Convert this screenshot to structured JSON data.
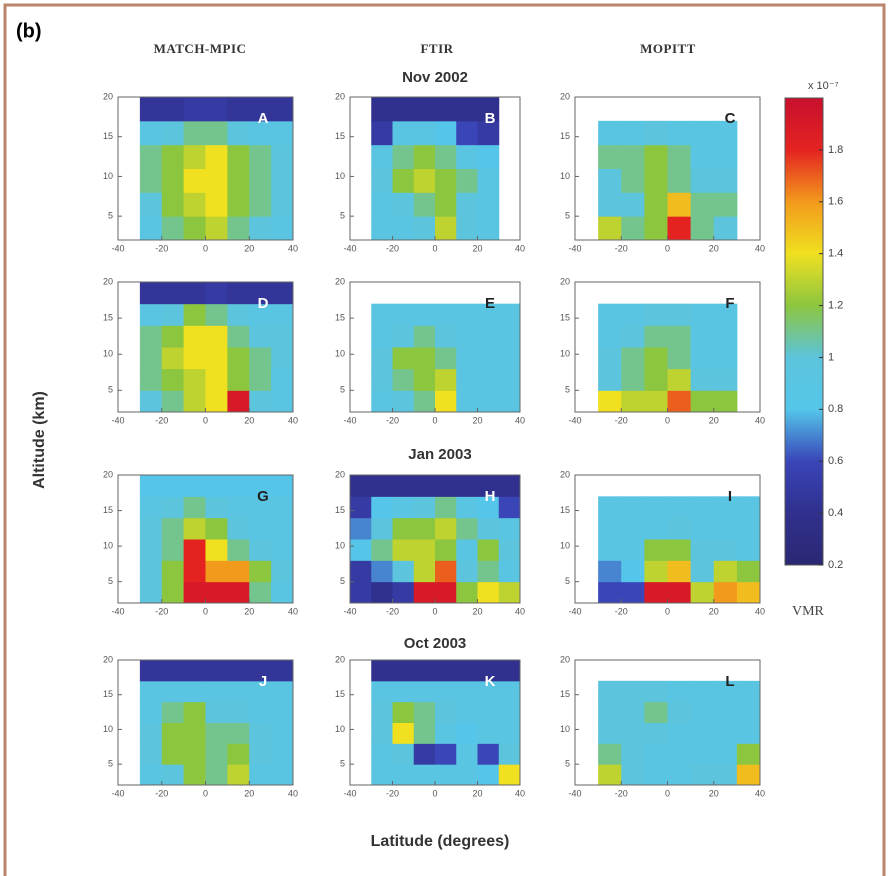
{
  "figure_label": "(b)",
  "column_titles": [
    "MATCH-MPIC",
    "FTIR",
    "MOPITT"
  ],
  "row_titles": [
    "Nov 2002",
    "Jan 2003",
    "Oct 2003"
  ],
  "y_label": "Altitude (km)",
  "x_label": "Latitude (degrees)",
  "colorbar": {
    "clim": [
      0.2,
      2.0
    ],
    "ticks": [
      0.2,
      0.4,
      0.6,
      0.8,
      1,
      1.2,
      1.4,
      1.6,
      1.8
    ],
    "scale_label": "x 10⁻⁷",
    "label": "VMR",
    "colors": [
      "#2a2872",
      "#30308e",
      "#3a45b8",
      "#55c6ea",
      "#5cc4dc",
      "#8cc63f",
      "#f0e020",
      "#f29a1c",
      "#e42320",
      "#c8102e"
    ]
  },
  "chart_data": [
    {
      "type": "heatmap",
      "label": "A",
      "xlim": [
        -40,
        40
      ],
      "ylim": [
        2,
        20
      ],
      "xticks": [
        -40,
        -20,
        0,
        20,
        40
      ],
      "yticks": [
        5,
        10,
        15,
        20
      ],
      "xbins": [
        -40,
        -30,
        -20,
        -10,
        0,
        10,
        20,
        30,
        40
      ],
      "ybins": [
        2,
        5,
        8,
        11,
        14,
        17,
        20
      ],
      "z": [
        [
          null,
          0.9,
          1.1,
          1.2,
          1.3,
          1.1,
          1.0,
          0.9
        ],
        [
          null,
          1.0,
          1.2,
          1.3,
          1.4,
          1.2,
          1.1,
          1.0
        ],
        [
          null,
          1.1,
          1.2,
          1.4,
          1.4,
          1.2,
          1.1,
          1.0
        ],
        [
          null,
          1.1,
          1.2,
          1.3,
          1.4,
          1.2,
          1.1,
          1.0
        ],
        [
          null,
          0.9,
          1.0,
          1.1,
          1.1,
          1.0,
          0.9,
          0.9
        ],
        [
          null,
          0.45,
          0.45,
          0.5,
          0.5,
          0.45,
          0.45,
          0.45
        ]
      ]
    },
    {
      "type": "heatmap",
      "label": "B",
      "xlim": [
        -40,
        40
      ],
      "ylim": [
        2,
        20
      ],
      "xticks": [
        -40,
        -20,
        0,
        20,
        40
      ],
      "yticks": [
        5,
        10,
        15,
        20
      ],
      "xbins": [
        -40,
        -30,
        -20,
        -10,
        0,
        10,
        20,
        30,
        40
      ],
      "ybins": [
        2,
        5,
        8,
        11,
        14,
        17,
        20
      ],
      "z": [
        [
          null,
          0.9,
          0.9,
          1.0,
          1.3,
          1.0,
          0.9,
          null
        ],
        [
          null,
          0.9,
          1.0,
          1.1,
          1.2,
          1.0,
          0.9,
          null
        ],
        [
          null,
          1.0,
          1.2,
          1.3,
          1.2,
          1.1,
          0.9,
          null
        ],
        [
          null,
          0.9,
          1.1,
          1.2,
          1.1,
          0.9,
          0.8,
          null
        ],
        [
          null,
          0.5,
          0.9,
          0.9,
          0.8,
          0.6,
          0.5,
          null
        ],
        [
          null,
          0.4,
          0.4,
          0.4,
          0.4,
          0.4,
          0.4,
          null
        ]
      ]
    },
    {
      "type": "heatmap",
      "label": "C",
      "xlim": [
        -40,
        40
      ],
      "ylim": [
        2,
        20
      ],
      "xticks": [
        -40,
        -20,
        0,
        20,
        40
      ],
      "yticks": [
        5,
        10,
        15,
        20
      ],
      "xbins": [
        -40,
        -30,
        -20,
        -10,
        0,
        10,
        20,
        30,
        40
      ],
      "ybins": [
        2,
        5,
        8,
        11,
        14,
        17,
        20
      ],
      "z": [
        [
          null,
          1.3,
          1.1,
          1.2,
          1.8,
          1.1,
          1.0,
          null
        ],
        [
          null,
          1.0,
          1.0,
          1.2,
          1.5,
          1.1,
          1.1,
          null
        ],
        [
          null,
          1.0,
          1.1,
          1.2,
          1.1,
          1.0,
          1.0,
          null
        ],
        [
          null,
          1.1,
          1.1,
          1.2,
          1.1,
          0.9,
          0.9,
          null
        ],
        [
          null,
          0.9,
          0.9,
          1.0,
          0.9,
          0.9,
          0.9,
          null
        ],
        [
          null,
          null,
          null,
          null,
          null,
          null,
          null,
          null
        ]
      ]
    },
    {
      "type": "heatmap",
      "label": "D",
      "xlim": [
        -40,
        40
      ],
      "ylim": [
        2,
        20
      ],
      "xticks": [
        -40,
        -20,
        0,
        20,
        40
      ],
      "yticks": [
        5,
        10,
        15,
        20
      ],
      "xbins": [
        -40,
        -30,
        -20,
        -10,
        0,
        10,
        20,
        30,
        40
      ],
      "ybins": [
        2,
        5,
        8,
        11,
        14,
        17,
        20
      ],
      "z": [
        [
          null,
          1.0,
          1.1,
          1.3,
          1.4,
          1.9,
          1.0,
          0.9
        ],
        [
          null,
          1.1,
          1.2,
          1.3,
          1.4,
          1.2,
          1.1,
          0.9
        ],
        [
          null,
          1.1,
          1.3,
          1.4,
          1.4,
          1.2,
          1.1,
          1.0
        ],
        [
          null,
          1.1,
          1.2,
          1.4,
          1.4,
          1.1,
          1.0,
          1.0
        ],
        [
          null,
          0.9,
          1.0,
          1.2,
          1.1,
          1.0,
          0.9,
          0.9
        ],
        [
          null,
          0.45,
          0.45,
          0.45,
          0.5,
          0.45,
          0.45,
          0.45
        ]
      ]
    },
    {
      "type": "heatmap",
      "label": "E",
      "xlim": [
        -40,
        40
      ],
      "ylim": [
        2,
        20
      ],
      "xticks": [
        -40,
        -20,
        0,
        20,
        40
      ],
      "yticks": [
        5,
        10,
        15,
        20
      ],
      "xbins": [
        -40,
        -30,
        -20,
        -10,
        0,
        10,
        20,
        30,
        40
      ],
      "ybins": [
        2,
        5,
        8,
        11,
        14,
        17,
        20
      ],
      "z": [
        [
          null,
          0.9,
          1.0,
          1.1,
          1.4,
          0.9,
          0.9,
          0.9
        ],
        [
          null,
          1.0,
          1.1,
          1.2,
          1.3,
          0.9,
          0.9,
          0.9
        ],
        [
          null,
          1.0,
          1.2,
          1.2,
          1.1,
          0.9,
          0.9,
          0.9
        ],
        [
          null,
          0.9,
          1.0,
          1.1,
          1.0,
          0.9,
          0.9,
          0.9
        ],
        [
          null,
          0.9,
          0.9,
          0.9,
          0.9,
          0.9,
          0.9,
          0.9
        ],
        [
          null,
          null,
          null,
          null,
          null,
          null,
          null,
          null
        ]
      ]
    },
    {
      "type": "heatmap",
      "label": "F",
      "xlim": [
        -40,
        40
      ],
      "ylim": [
        2,
        20
      ],
      "xticks": [
        -40,
        -20,
        0,
        20,
        40
      ],
      "yticks": [
        5,
        10,
        15,
        20
      ],
      "xbins": [
        -40,
        -30,
        -20,
        -10,
        0,
        10,
        20,
        30,
        40
      ],
      "ybins": [
        2,
        5,
        8,
        11,
        14,
        17,
        20
      ],
      "z": [
        [
          null,
          1.4,
          1.3,
          1.3,
          1.7,
          1.2,
          1.2,
          null
        ],
        [
          null,
          1.0,
          1.1,
          1.2,
          1.3,
          1.0,
          1.0,
          null
        ],
        [
          null,
          1.0,
          1.1,
          1.2,
          1.1,
          0.9,
          0.9,
          null
        ],
        [
          null,
          0.9,
          1.0,
          1.1,
          1.1,
          0.9,
          0.9,
          null
        ],
        [
          null,
          0.9,
          0.9,
          1.0,
          1.0,
          0.9,
          0.9,
          null
        ],
        [
          null,
          null,
          null,
          null,
          null,
          null,
          null,
          null
        ]
      ]
    },
    {
      "type": "heatmap",
      "label": "G",
      "xlim": [
        -40,
        40
      ],
      "ylim": [
        2,
        20
      ],
      "xticks": [
        -40,
        -20,
        0,
        20,
        40
      ],
      "yticks": [
        5,
        10,
        15,
        20
      ],
      "xbins": [
        -40,
        -30,
        -20,
        -10,
        0,
        10,
        20,
        30,
        40
      ],
      "ybins": [
        2,
        5,
        8,
        11,
        14,
        17,
        20
      ],
      "z": [
        [
          null,
          1.0,
          1.2,
          1.9,
          1.9,
          1.9,
          1.1,
          0.9
        ],
        [
          null,
          1.0,
          1.2,
          1.8,
          1.6,
          1.6,
          1.2,
          1.0
        ],
        [
          null,
          1.0,
          1.1,
          1.8,
          1.4,
          1.1,
          1.0,
          0.9
        ],
        [
          null,
          1.0,
          1.1,
          1.3,
          1.2,
          1.0,
          0.9,
          0.9
        ],
        [
          null,
          0.9,
          1.0,
          1.1,
          1.0,
          0.9,
          0.9,
          0.9
        ],
        [
          null,
          0.8,
          0.8,
          0.8,
          0.8,
          0.8,
          0.8,
          0.8
        ]
      ]
    },
    {
      "type": "heatmap",
      "label": "H",
      "xlim": [
        -40,
        40
      ],
      "ylim": [
        2,
        20
      ],
      "xticks": [
        -40,
        -20,
        0,
        20,
        40
      ],
      "yticks": [
        5,
        10,
        15,
        20
      ],
      "xbins": [
        -40,
        -30,
        -20,
        -10,
        0,
        10,
        20,
        30,
        40
      ],
      "ybins": [
        2,
        5,
        8,
        11,
        14,
        17,
        20
      ],
      "z": [
        [
          0.5,
          0.4,
          0.5,
          1.9,
          1.9,
          1.2,
          1.4,
          1.3
        ],
        [
          0.5,
          0.7,
          1.0,
          1.3,
          1.7,
          1.0,
          1.1,
          0.9
        ],
        [
          0.8,
          1.1,
          1.3,
          1.3,
          1.2,
          0.9,
          1.2,
          1.0
        ],
        [
          0.7,
          1.0,
          1.2,
          1.2,
          1.3,
          1.1,
          1.0,
          0.9
        ],
        [
          0.5,
          0.8,
          0.9,
          1.0,
          1.1,
          0.9,
          0.8,
          0.6
        ],
        [
          0.4,
          0.4,
          0.4,
          0.4,
          0.4,
          0.4,
          0.4,
          0.4
        ]
      ]
    },
    {
      "type": "heatmap",
      "label": "I",
      "xlim": [
        -40,
        40
      ],
      "ylim": [
        2,
        20
      ],
      "xticks": [
        -40,
        -20,
        0,
        20,
        40
      ],
      "yticks": [
        5,
        10,
        15,
        20
      ],
      "xbins": [
        -40,
        -30,
        -20,
        -10,
        0,
        10,
        20,
        30,
        40
      ],
      "ybins": [
        2,
        5,
        8,
        11,
        14,
        17,
        20
      ],
      "z": [
        [
          null,
          0.6,
          0.6,
          1.9,
          1.9,
          1.3,
          1.6,
          1.5
        ],
        [
          null,
          0.7,
          0.8,
          1.3,
          1.5,
          1.0,
          1.3,
          1.2
        ],
        [
          null,
          0.9,
          0.9,
          1.2,
          1.2,
          1.0,
          1.0,
          0.9
        ],
        [
          null,
          0.9,
          0.9,
          0.9,
          1.0,
          0.9,
          0.9,
          0.9
        ],
        [
          null,
          0.9,
          0.9,
          0.9,
          0.9,
          0.9,
          0.9,
          0.9
        ],
        [
          null,
          null,
          null,
          null,
          null,
          null,
          null,
          null
        ]
      ]
    },
    {
      "type": "heatmap",
      "label": "J",
      "xlim": [
        -40,
        40
      ],
      "ylim": [
        2,
        20
      ],
      "xticks": [
        -40,
        -20,
        0,
        20,
        40
      ],
      "yticks": [
        5,
        10,
        15,
        20
      ],
      "xbins": [
        -40,
        -30,
        -20,
        -10,
        0,
        10,
        20,
        30,
        40
      ],
      "ybins": [
        2,
        5,
        8,
        11,
        14,
        17,
        20
      ],
      "z": [
        [
          null,
          0.9,
          1.0,
          1.2,
          1.1,
          1.3,
          0.9,
          0.9
        ],
        [
          null,
          1.0,
          1.2,
          1.2,
          1.1,
          1.2,
          1.0,
          0.9
        ],
        [
          null,
          1.0,
          1.2,
          1.2,
          1.1,
          1.1,
          1.0,
          0.9
        ],
        [
          null,
          0.9,
          1.1,
          1.2,
          1.0,
          1.0,
          0.9,
          0.9
        ],
        [
          null,
          0.9,
          0.9,
          0.9,
          0.9,
          0.9,
          0.9,
          0.9
        ],
        [
          null,
          0.45,
          0.45,
          0.45,
          0.45,
          0.45,
          0.45,
          0.45
        ]
      ]
    },
    {
      "type": "heatmap",
      "label": "K",
      "xlim": [
        -40,
        40
      ],
      "ylim": [
        2,
        20
      ],
      "xticks": [
        -40,
        -20,
        0,
        20,
        40
      ],
      "yticks": [
        5,
        10,
        15,
        20
      ],
      "xbins": [
        -40,
        -30,
        -20,
        -10,
        0,
        10,
        20,
        30,
        40
      ],
      "ybins": [
        2,
        5,
        8,
        11,
        14,
        17,
        20
      ],
      "z": [
        [
          null,
          0.9,
          0.9,
          0.9,
          0.9,
          0.9,
          0.8,
          1.4
        ],
        [
          null,
          0.9,
          1.0,
          0.5,
          0.6,
          0.9,
          0.6,
          1.0
        ],
        [
          null,
          1.0,
          1.4,
          1.1,
          0.9,
          0.8,
          0.9,
          0.9
        ],
        [
          null,
          1.0,
          1.2,
          1.1,
          1.0,
          0.9,
          0.9,
          0.9
        ],
        [
          null,
          0.9,
          0.9,
          0.9,
          0.9,
          0.9,
          0.9,
          0.9
        ],
        [
          null,
          0.4,
          0.4,
          0.4,
          0.4,
          0.4,
          0.4,
          0.4
        ]
      ]
    },
    {
      "type": "heatmap",
      "label": "L",
      "xlim": [
        -40,
        40
      ],
      "ylim": [
        2,
        20
      ],
      "xticks": [
        -40,
        -20,
        0,
        20,
        40
      ],
      "yticks": [
        5,
        10,
        15,
        20
      ],
      "xbins": [
        -40,
        -30,
        -20,
        -10,
        0,
        10,
        20,
        30,
        40
      ],
      "ybins": [
        2,
        5,
        8,
        11,
        14,
        17,
        20
      ],
      "z": [
        [
          null,
          1.3,
          1.0,
          0.9,
          0.9,
          1.0,
          1.0,
          1.5
        ],
        [
          null,
          1.1,
          1.0,
          0.9,
          0.9,
          0.9,
          0.9,
          1.2
        ],
        [
          null,
          1.0,
          1.0,
          1.0,
          0.9,
          0.9,
          0.9,
          0.9
        ],
        [
          null,
          1.0,
          1.0,
          1.1,
          1.0,
          0.9,
          0.9,
          0.9
        ],
        [
          null,
          1.0,
          1.0,
          1.0,
          0.9,
          0.9,
          0.9,
          0.9
        ],
        [
          null,
          null,
          null,
          null,
          null,
          null,
          null,
          null
        ]
      ]
    }
  ]
}
